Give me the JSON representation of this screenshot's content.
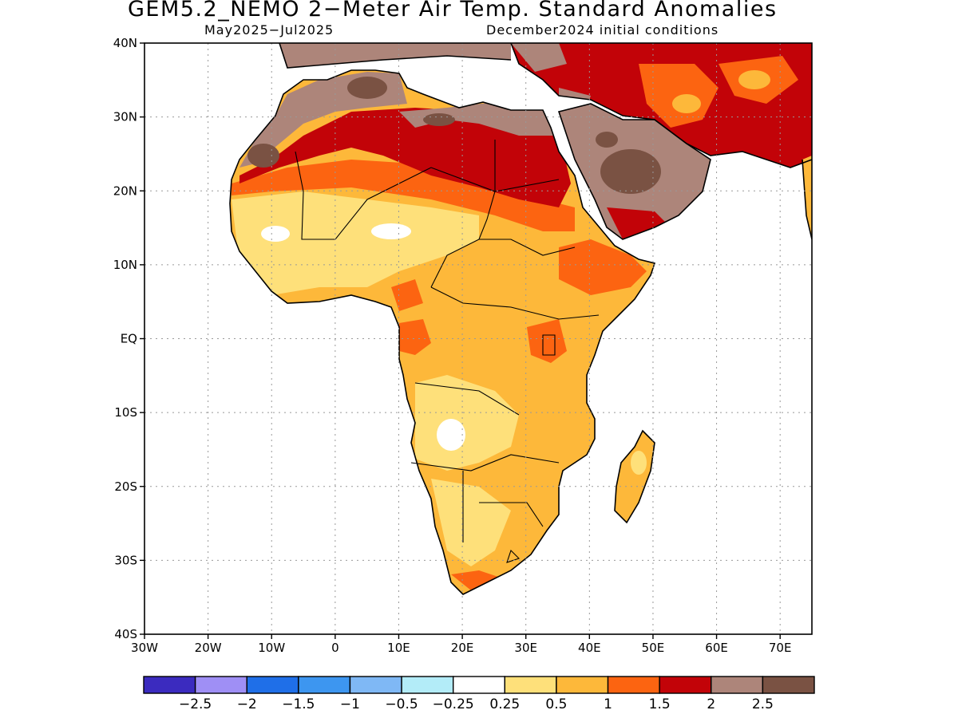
{
  "title": "GEM5.2_NEMO 2−Meter Air Temp. Standard Anomalies",
  "subtitle_left": "May2025−Jul2025",
  "subtitle_right": "December2024 initial conditions",
  "map": {
    "lon_range": [
      -30,
      75
    ],
    "lat_range": [
      -40,
      40
    ],
    "grid": true,
    "lat_ticks": [
      "40N",
      "30N",
      "20N",
      "10N",
      "EQ",
      "10S",
      "20S",
      "30S",
      "40S"
    ],
    "lon_ticks": [
      "30W",
      "20W",
      "10W",
      "0",
      "10E",
      "20E",
      "30E",
      "40E",
      "50E",
      "60E",
      "70E"
    ]
  },
  "colorbar": {
    "colors": [
      "#3b2bbf",
      "#9f8ff5",
      "#1f6fe8",
      "#3d96f0",
      "#7fb8f5",
      "#b3ecf8",
      "#ffffff",
      "#fee07a",
      "#fdb83a",
      "#fc6411",
      "#c20308",
      "#ad857a",
      "#7a5243"
    ],
    "labels": [
      "−2.5",
      "−2",
      "−1.5",
      "−1",
      "−0.5",
      "−0.25",
      "0.25",
      "0.5",
      "1",
      "1.5",
      "2",
      "2.5"
    ]
  }
}
